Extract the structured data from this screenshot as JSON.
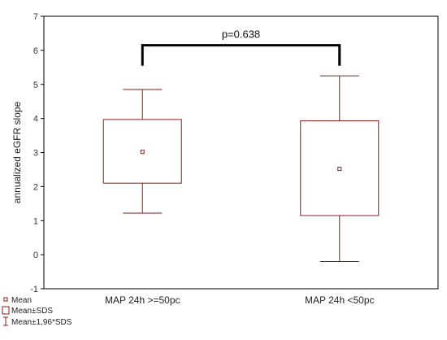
{
  "chart_data": {
    "type": "box",
    "title": "",
    "xlabel": "",
    "ylabel": "annualized eGFR slope",
    "ylim": [
      -1,
      7
    ],
    "yticks": [
      -1,
      0,
      1,
      2,
      3,
      4,
      5,
      6,
      7
    ],
    "grid": false,
    "categories": [
      "MAP 24h >=50pc",
      "MAP 24h <50pc"
    ],
    "boxes": [
      {
        "category": "MAP 24h >=50pc",
        "mean": 3.02,
        "sds_low": 2.1,
        "sds_high": 3.97,
        "ci_low": 1.22,
        "ci_high": 4.85
      },
      {
        "category": "MAP 24h <50pc",
        "mean": 2.52,
        "sds_low": 1.15,
        "sds_high": 3.93,
        "ci_low": -0.2,
        "ci_high": 5.25
      }
    ],
    "annotation": {
      "text": "p=0.638",
      "level": 6.15,
      "drop_to": 5.55
    },
    "legend": {
      "placement": "bottom-left",
      "entries": [
        "Mean",
        "Mean±SDS",
        "Mean±1,96*SDS"
      ]
    },
    "colors": {
      "box": "#8b1a1a",
      "axis": "#000000",
      "bracket": "#000000"
    }
  }
}
